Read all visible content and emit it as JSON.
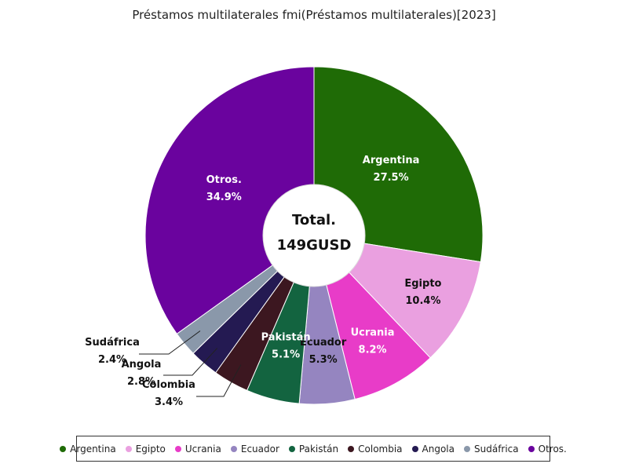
{
  "chart_data": {
    "type": "pie",
    "title": "Préstamos multilaterales fmi(Préstamos multilaterales)[2023]",
    "center_label": {
      "title": "Total.",
      "value": "149GUSD"
    },
    "slices": [
      {
        "name": "Argentina",
        "value": 27.5,
        "label": "27.5%",
        "color": "#1f6b06",
        "label_color": "#ffffff"
      },
      {
        "name": "Egipto",
        "value": 10.4,
        "label": "10.4%",
        "color": "#eaa0e0",
        "label_color": "#111111"
      },
      {
        "name": "Ucrania",
        "value": 8.2,
        "label": "8.2%",
        "color": "#e83cc8",
        "label_color": "#ffffff"
      },
      {
        "name": "Ecuador",
        "value": 5.3,
        "label": "5.3%",
        "color": "#9585c0",
        "label_color": "#111111"
      },
      {
        "name": "Pakistán",
        "value": 5.1,
        "label": "5.1%",
        "color": "#136440",
        "label_color": "#ffffff"
      },
      {
        "name": "Colombia",
        "value": 3.4,
        "label": "3.4%",
        "color": "#3c1720",
        "label_color": "#111111"
      },
      {
        "name": "Angola",
        "value": 2.8,
        "label": "2.8%",
        "color": "#241a52",
        "label_color": "#111111"
      },
      {
        "name": "Sudáfrica",
        "value": 2.4,
        "label": "2.4%",
        "color": "#8a98aa",
        "label_color": "#111111"
      },
      {
        "name": "Otros.",
        "value": 34.9,
        "label": "34.9%",
        "color": "#6a039e",
        "label_color": "#ffffff"
      }
    ],
    "legend": {
      "placement": "bottom"
    }
  }
}
